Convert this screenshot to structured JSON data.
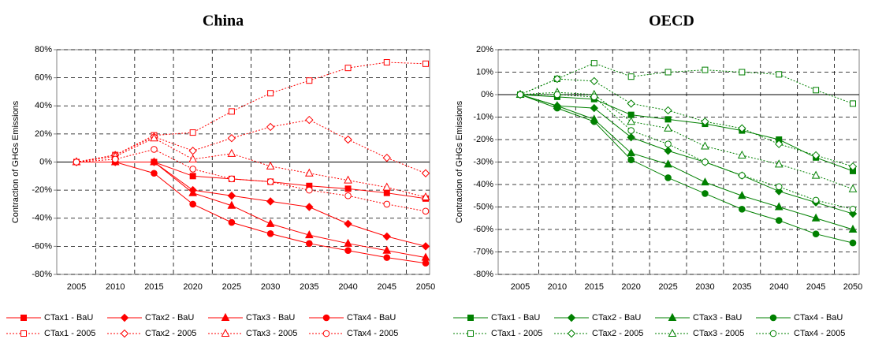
{
  "chart_data": [
    {
      "type": "line",
      "title": "China",
      "y_label": "Contraction of GHGs Emissions",
      "categories": [
        "2005",
        "2010",
        "2015",
        "2020",
        "2025",
        "2030",
        "2035",
        "2040",
        "2045",
        "2050"
      ],
      "ylim": [
        -80,
        80
      ],
      "yticks": [
        {
          "value": -80,
          "label": "-80%"
        },
        {
          "value": -60,
          "label": "-60%"
        },
        {
          "value": -40,
          "label": "-40%"
        },
        {
          "value": -20,
          "label": "-20%"
        },
        {
          "value": 0,
          "label": "0%"
        },
        {
          "value": 20,
          "label": "20%"
        },
        {
          "value": 40,
          "label": "40%"
        },
        {
          "value": 60,
          "label": "60%"
        },
        {
          "value": 80,
          "label": "80%"
        }
      ],
      "grid": true,
      "series": [
        {
          "name": "CTax1 - BaU",
          "color": "#ff0000",
          "marker": "square",
          "filled": true,
          "dashed": false,
          "values": [
            0,
            0,
            0,
            -10,
            -12,
            -14,
            -17,
            -19,
            -22,
            -26
          ]
        },
        {
          "name": "CTax2 - BaU",
          "color": "#ff0000",
          "marker": "diamond",
          "filled": true,
          "dashed": false,
          "values": [
            0,
            0,
            0,
            -20,
            -24,
            -28,
            -32,
            -44,
            -53,
            -60
          ]
        },
        {
          "name": "CTax3 - BaU",
          "color": "#ff0000",
          "marker": "triangle",
          "filled": true,
          "dashed": false,
          "values": [
            0,
            0,
            0,
            -22,
            -31,
            -44,
            -52,
            -58,
            -63,
            -68
          ]
        },
        {
          "name": "CTax4 - BaU",
          "color": "#ff0000",
          "marker": "circle",
          "filled": true,
          "dashed": false,
          "values": [
            0,
            0,
            -8,
            -30,
            -43,
            -51,
            -58,
            -63,
            -68,
            -72
          ]
        },
        {
          "name": "CTax1 - 2005",
          "color": "#ff0000",
          "marker": "square",
          "filled": false,
          "dashed": true,
          "values": [
            0,
            5,
            19,
            21,
            36,
            49,
            58,
            67,
            71,
            70
          ]
        },
        {
          "name": "CTax2 - 2005",
          "color": "#ff0000",
          "marker": "diamond",
          "filled": false,
          "dashed": true,
          "values": [
            0,
            5,
            18,
            8,
            17,
            25,
            30,
            16,
            3,
            -8
          ]
        },
        {
          "name": "CTax3 - 2005",
          "color": "#ff0000",
          "marker": "triangle",
          "filled": false,
          "dashed": true,
          "values": [
            0,
            4,
            17,
            2,
            6,
            -3,
            -8,
            -13,
            -18,
            -25
          ]
        },
        {
          "name": "CTax4 - 2005",
          "color": "#ff0000",
          "marker": "circle",
          "filled": false,
          "dashed": true,
          "values": [
            0,
            2,
            9,
            -5,
            -12,
            -14,
            -20,
            -24,
            -30,
            -35
          ]
        }
      ]
    },
    {
      "type": "line",
      "title": "OECD",
      "y_label": "Contraction of GHGs Emissions",
      "categories": [
        "2005",
        "2010",
        "2015",
        "2020",
        "2025",
        "2030",
        "2035",
        "2040",
        "2045",
        "2050"
      ],
      "ylim": [
        -80,
        20
      ],
      "yticks": [
        {
          "value": -80,
          "label": "-80%"
        },
        {
          "value": -70,
          "label": "-70%"
        },
        {
          "value": -60,
          "label": "-60%"
        },
        {
          "value": -50,
          "label": "-50%"
        },
        {
          "value": -40,
          "label": "-40%"
        },
        {
          "value": -30,
          "label": "-30%"
        },
        {
          "value": -20,
          "label": "-20%"
        },
        {
          "value": -10,
          "label": "-10%"
        },
        {
          "value": 0,
          "label": "0%"
        },
        {
          "value": 10,
          "label": "10%"
        },
        {
          "value": 20,
          "label": "20%"
        }
      ],
      "grid": true,
      "series": [
        {
          "name": "CTax1 - BaU",
          "color": "#008000",
          "marker": "square",
          "filled": true,
          "dashed": false,
          "values": [
            0,
            -1,
            -2,
            -9,
            -11,
            -13,
            -16,
            -20,
            -28,
            -34
          ]
        },
        {
          "name": "CTax2 - BaU",
          "color": "#008000",
          "marker": "diamond",
          "filled": true,
          "dashed": false,
          "values": [
            0,
            -5,
            -6,
            -19,
            -25,
            -30,
            -36,
            -43,
            -48,
            -53
          ]
        },
        {
          "name": "CTax3 - BaU",
          "color": "#008000",
          "marker": "triangle",
          "filled": true,
          "dashed": false,
          "values": [
            0,
            -5,
            -11,
            -26,
            -31,
            -39,
            -45,
            -50,
            -55,
            -60
          ]
        },
        {
          "name": "CTax4 - BaU",
          "color": "#008000",
          "marker": "circle",
          "filled": true,
          "dashed": false,
          "values": [
            0,
            -6,
            -12,
            -29,
            -37,
            -44,
            -51,
            -56,
            -62,
            -66
          ]
        },
        {
          "name": "CTax1 - 2005",
          "color": "#008000",
          "marker": "square",
          "filled": false,
          "dashed": true,
          "values": [
            0,
            7,
            14,
            8,
            10,
            11,
            10,
            9,
            2,
            -4
          ]
        },
        {
          "name": "CTax2 - 2005",
          "color": "#008000",
          "marker": "diamond",
          "filled": false,
          "dashed": true,
          "values": [
            0,
            7,
            6,
            -4,
            -7,
            -12,
            -15,
            -22,
            -27,
            -32
          ]
        },
        {
          "name": "CTax3 - 2005",
          "color": "#008000",
          "marker": "triangle",
          "filled": false,
          "dashed": true,
          "values": [
            0,
            1,
            0,
            -12,
            -15,
            -23,
            -27,
            -31,
            -36,
            -42
          ]
        },
        {
          "name": "CTax4 - 2005",
          "color": "#008000",
          "marker": "circle",
          "filled": false,
          "dashed": true,
          "values": [
            0,
            0,
            -1,
            -16,
            -22,
            -30,
            -36,
            -41,
            -47,
            -51
          ]
        }
      ]
    }
  ]
}
